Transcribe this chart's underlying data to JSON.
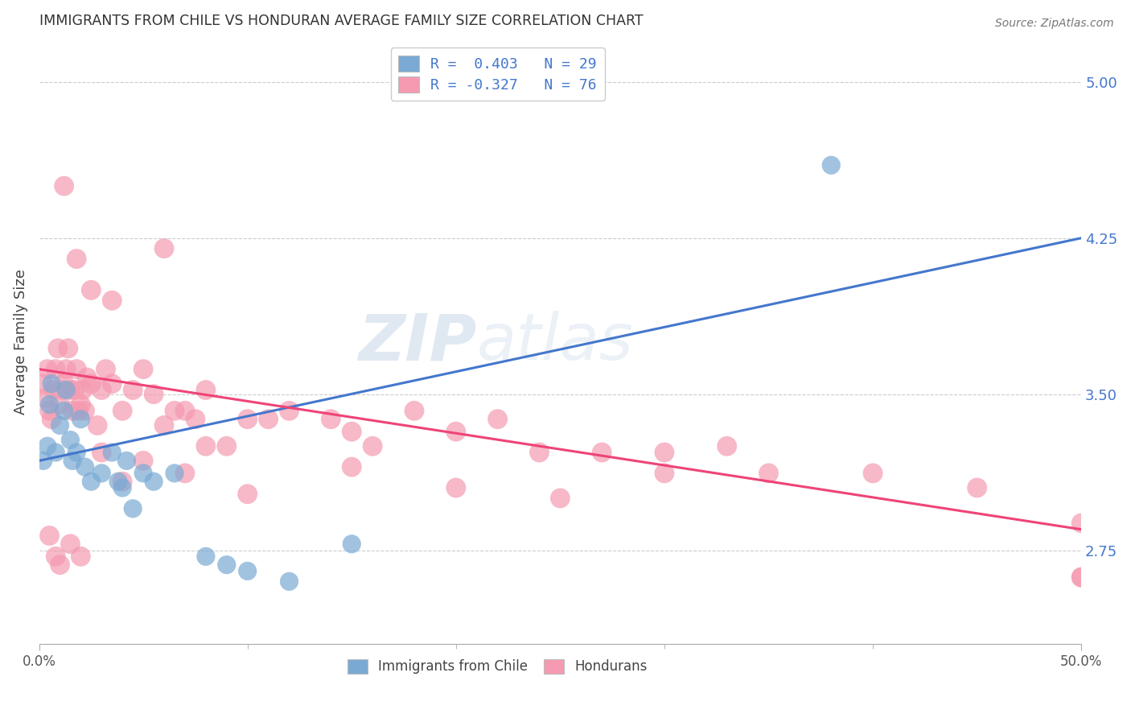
{
  "title": "IMMIGRANTS FROM CHILE VS HONDURAN AVERAGE FAMILY SIZE CORRELATION CHART",
  "source": "Source: ZipAtlas.com",
  "ylabel": "Average Family Size",
  "watermark_zip": "ZIP",
  "watermark_atlas": "atlas",
  "right_yticks": [
    2.75,
    3.5,
    4.25,
    5.0
  ],
  "xlim": [
    0.0,
    50.0
  ],
  "ylim": [
    2.3,
    5.2
  ],
  "chile_R": 0.403,
  "chile_N": 29,
  "honduran_R": -0.327,
  "honduran_N": 76,
  "chile_color": "#7aaad4",
  "honduran_color": "#f59ab0",
  "chile_line_color": "#4477cc",
  "honduran_line_color": "#ee4477",
  "legend_text_color": "#4477cc",
  "title_color": "#333333",
  "background_color": "#ffffff",
  "grid_color": "#cccccc",
  "chile_line_start_y": 3.18,
  "chile_line_end_y": 4.25,
  "honduran_line_start_y": 3.62,
  "honduran_line_end_y": 2.85,
  "chile_x": [
    0.2,
    0.4,
    0.5,
    0.6,
    0.8,
    1.0,
    1.2,
    1.3,
    1.5,
    1.6,
    1.8,
    2.0,
    2.2,
    2.5,
    3.0,
    3.5,
    4.0,
    4.5,
    5.5,
    6.5,
    8.0,
    9.0,
    10.0,
    12.0,
    15.0,
    38.0,
    3.8,
    4.2,
    5.0
  ],
  "chile_y": [
    3.18,
    3.25,
    3.45,
    3.55,
    3.22,
    3.35,
    3.42,
    3.52,
    3.28,
    3.18,
    3.22,
    3.38,
    3.15,
    3.08,
    3.12,
    3.22,
    3.05,
    2.95,
    3.08,
    3.12,
    2.72,
    2.68,
    2.65,
    2.6,
    2.78,
    4.6,
    3.08,
    3.18,
    3.12
  ],
  "honduran_x": [
    0.2,
    0.3,
    0.4,
    0.5,
    0.6,
    0.7,
    0.8,
    0.9,
    1.0,
    1.1,
    1.2,
    1.3,
    1.4,
    1.5,
    1.6,
    1.7,
    1.8,
    1.9,
    2.0,
    2.1,
    2.2,
    2.3,
    2.5,
    2.8,
    3.0,
    3.2,
    3.5,
    4.0,
    4.5,
    5.0,
    5.5,
    6.0,
    6.5,
    7.0,
    7.5,
    8.0,
    9.0,
    10.0,
    11.0,
    12.0,
    14.0,
    16.0,
    18.0,
    20.0,
    22.0,
    24.0,
    27.0,
    30.0,
    33.0,
    35.0,
    40.0,
    45.0,
    50.0,
    1.2,
    1.8,
    2.5,
    3.5,
    6.0,
    8.0,
    15.0,
    20.0,
    30.0,
    50.0,
    0.5,
    0.8,
    1.0,
    1.5,
    2.0,
    3.0,
    4.0,
    5.0,
    7.0,
    10.0,
    15.0,
    25.0,
    50.0
  ],
  "honduran_y": [
    3.55,
    3.48,
    3.62,
    3.42,
    3.38,
    3.52,
    3.62,
    3.72,
    3.45,
    3.52,
    3.55,
    3.62,
    3.72,
    3.52,
    3.42,
    3.52,
    3.62,
    3.42,
    3.45,
    3.52,
    3.42,
    3.58,
    3.55,
    3.35,
    3.52,
    3.62,
    3.55,
    3.42,
    3.52,
    3.62,
    3.5,
    3.35,
    3.42,
    3.42,
    3.38,
    3.52,
    3.25,
    3.38,
    3.38,
    3.42,
    3.38,
    3.25,
    3.42,
    3.32,
    3.38,
    3.22,
    3.22,
    3.12,
    3.25,
    3.12,
    3.12,
    3.05,
    2.88,
    4.5,
    4.15,
    4.0,
    3.95,
    4.2,
    3.25,
    3.32,
    3.05,
    3.22,
    2.62,
    2.82,
    2.72,
    2.68,
    2.78,
    2.72,
    3.22,
    3.08,
    3.18,
    3.12,
    3.02,
    3.15,
    3.0,
    2.62
  ]
}
